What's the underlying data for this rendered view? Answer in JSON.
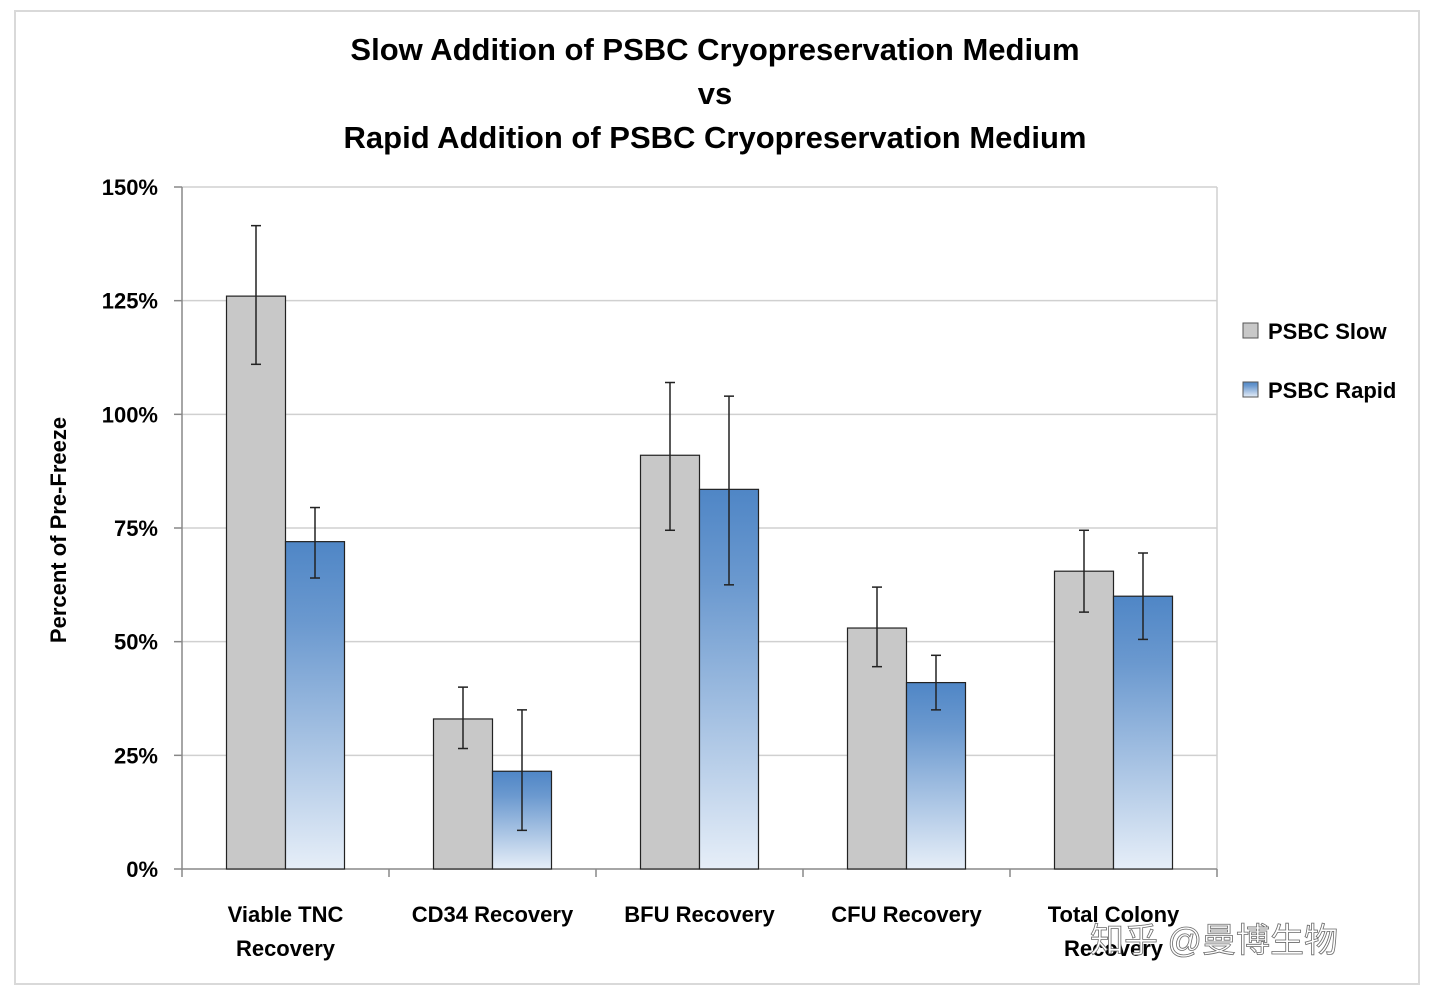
{
  "chart_data": {
    "type": "bar",
    "title": [
      "Slow Addition of PSBC Cryopreservation Medium",
      "vs",
      "Rapid Addition of PSBC Cryopreservation Medium"
    ],
    "ylabel": "Percent of Pre-Freeze",
    "xlabel": "",
    "ylim": [
      0,
      150
    ],
    "yticks": [
      0,
      25,
      50,
      75,
      100,
      125,
      150
    ],
    "ytick_labels": [
      "0%",
      "25%",
      "50%",
      "75%",
      "100%",
      "125%",
      "150%"
    ],
    "grid": true,
    "legend_position": "right",
    "categories": [
      [
        "Viable TNC",
        "Recovery"
      ],
      [
        "CD34 Recovery"
      ],
      [
        "BFU Recovery"
      ],
      [
        "CFU Recovery"
      ],
      [
        "Total Colony",
        "Recovery"
      ]
    ],
    "series": [
      {
        "name": "PSBC Slow",
        "color": "#c8c8c8",
        "values": [
          126,
          33,
          91,
          53,
          65.5
        ],
        "error_low": [
          111,
          26.5,
          74.5,
          44.5,
          56.5
        ],
        "error_high": [
          141.5,
          40,
          107,
          62,
          74.5
        ]
      },
      {
        "name": "PSBC Rapid",
        "color_top": "#4f86c6",
        "color_bottom": "#e6eef8",
        "values": [
          72,
          21.5,
          83.5,
          41,
          60
        ],
        "error_low": [
          64,
          8.5,
          62.5,
          35,
          50.5
        ],
        "error_high": [
          79.5,
          35,
          104,
          47,
          69.5
        ]
      }
    ]
  },
  "watermark": "知乎 @曼博生物"
}
